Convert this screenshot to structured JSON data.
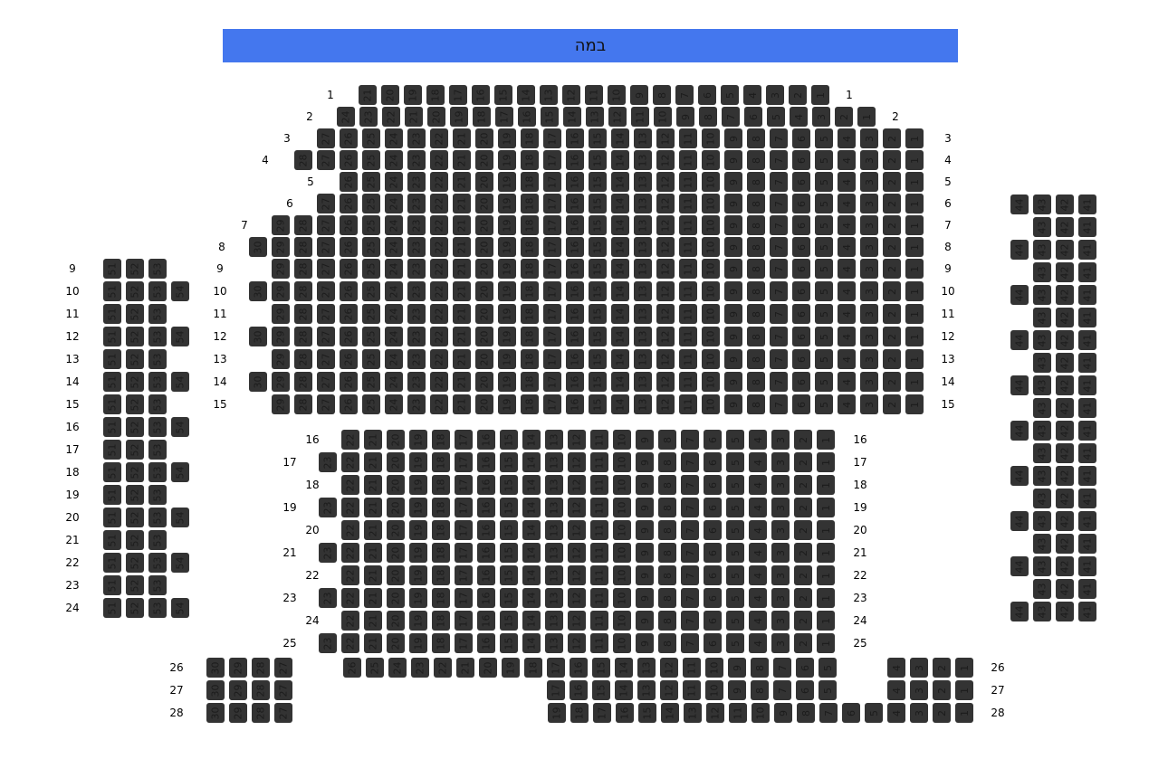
{
  "stage": {
    "label": "במה",
    "color": "#4477ee"
  },
  "seat_color": "#333333",
  "sections": {
    "main_upper": [
      {
        "label": "1",
        "from": 21,
        "to": 1
      },
      {
        "label": "2",
        "from": 24,
        "to": 1
      },
      {
        "label": "3",
        "from": 27,
        "to": 1
      },
      {
        "label": "4",
        "from": 28,
        "to": 1
      },
      {
        "label": "5",
        "from": 26,
        "to": 1
      },
      {
        "label": "6",
        "from": 27,
        "to": 1
      },
      {
        "label": "7",
        "from": 29,
        "to": 1
      },
      {
        "label": "8",
        "from": 30,
        "to": 1
      },
      {
        "label": "9",
        "from": 29,
        "to": 1
      },
      {
        "label": "10",
        "from": 30,
        "to": 1
      },
      {
        "label": "11",
        "from": 29,
        "to": 1
      },
      {
        "label": "12",
        "from": 30,
        "to": 1
      },
      {
        "label": "13",
        "from": 29,
        "to": 1
      },
      {
        "label": "14",
        "from": 30,
        "to": 1
      },
      {
        "label": "15",
        "from": 29,
        "to": 1
      }
    ],
    "main_lower": [
      {
        "label": "16",
        "from": 22,
        "to": 1
      },
      {
        "label": "17",
        "from": 23,
        "to": 1
      },
      {
        "label": "18",
        "from": 22,
        "to": 1
      },
      {
        "label": "19",
        "from": 23,
        "to": 1
      },
      {
        "label": "20",
        "from": 22,
        "to": 1
      },
      {
        "label": "21",
        "from": 23,
        "to": 1
      },
      {
        "label": "22",
        "from": 22,
        "to": 1
      },
      {
        "label": "23",
        "from": 23,
        "to": 1
      },
      {
        "label": "24",
        "from": 22,
        "to": 1
      },
      {
        "label": "25",
        "from": 23,
        "to": 1
      }
    ],
    "back_center": [
      {
        "label": "26",
        "from": 26,
        "to": 1
      },
      {
        "label": "27",
        "from": 17,
        "to": 1
      },
      {
        "label": "28",
        "from": 19,
        "to": 1
      }
    ],
    "back_left": [
      {
        "label": "26",
        "from": 30,
        "to": 27
      },
      {
        "label": "27",
        "from": 30,
        "to": 27
      },
      {
        "label": "28",
        "from": 30,
        "to": 27
      }
    ],
    "left_wing": [
      {
        "label": "9",
        "from": 51,
        "to": 53
      },
      {
        "label": "10",
        "from": 51,
        "to": 54
      },
      {
        "label": "11",
        "from": 51,
        "to": 53
      },
      {
        "label": "12",
        "from": 51,
        "to": 54
      },
      {
        "label": "13",
        "from": 51,
        "to": 53
      },
      {
        "label": "14",
        "from": 51,
        "to": 54
      },
      {
        "label": "15",
        "from": 51,
        "to": 53
      },
      {
        "label": "16",
        "from": 51,
        "to": 54
      },
      {
        "label": "17",
        "from": 51,
        "to": 53
      },
      {
        "label": "18",
        "from": 51,
        "to": 54
      },
      {
        "label": "19",
        "from": 51,
        "to": 53
      },
      {
        "label": "20",
        "from": 51,
        "to": 54
      },
      {
        "label": "21",
        "from": 51,
        "to": 53
      },
      {
        "label": "22",
        "from": 51,
        "to": 54
      },
      {
        "label": "23",
        "from": 51,
        "to": 53
      },
      {
        "label": "24",
        "from": 51,
        "to": 54
      }
    ],
    "right_wing": [
      {
        "from": 44,
        "to": 41
      },
      {
        "from": 43,
        "to": 41
      },
      {
        "from": 44,
        "to": 41
      },
      {
        "from": 43,
        "to": 41
      },
      {
        "from": 44,
        "to": 41
      },
      {
        "from": 43,
        "to": 41
      },
      {
        "from": 44,
        "to": 41
      },
      {
        "from": 43,
        "to": 41
      },
      {
        "from": 44,
        "to": 41
      },
      {
        "from": 43,
        "to": 41
      },
      {
        "from": 44,
        "to": 41
      },
      {
        "from": 43,
        "to": 41
      },
      {
        "from": 44,
        "to": 41
      },
      {
        "from": 43,
        "to": 41
      },
      {
        "from": 44,
        "to": 41
      },
      {
        "from": 43,
        "to": 41
      },
      {
        "from": 44,
        "to": 41
      },
      {
        "from": 43,
        "to": 41
      },
      {
        "from": 44,
        "to": 41
      }
    ]
  }
}
